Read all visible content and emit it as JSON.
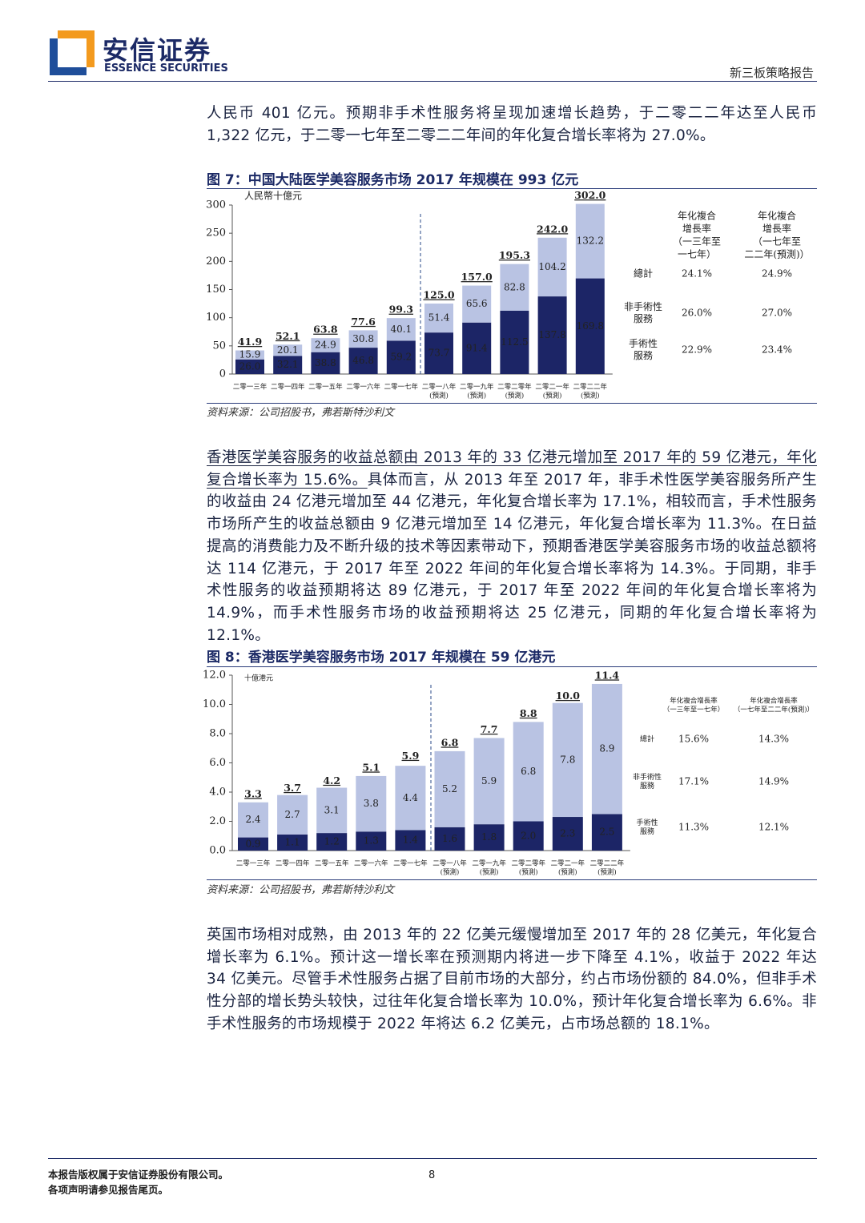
{
  "header": {
    "logo_cn": "安信证券",
    "logo_en": "ESSENCE SECURITIES",
    "report_type": "新三板策略报告"
  },
  "paragraphs": [
    {
      "text": "人民币 401 亿元。预期非手术性服务将呈现加速增长趋势，于二零二二年达至人民币 1,322 亿元，于二零一七年至二零二二年间的年化复合增长率将为 27.0%。"
    },
    {
      "underlined": "香港医学美容服务的收益总额由 2013 年的 33 亿港元增加至 2017 年的 59 亿港元，年化复合增长率为 15.6%。",
      "text": "具体而言，从 2013 年至 2017 年，非手术性医学美容服务所产生的收益由 24 亿港元增加至 44 亿港元，年化复合增长率为 17.1%，相较而言，手术性服务市场所产生的收益总额由 9 亿港元增加至 14 亿港元，年化复合增长率为 11.3%。在日益提高的消费能力及不断升级的技术等因素带动下，预期香港医学美容服务市场的收益总额将达 114 亿港元，于 2017 年至 2022 年间的年化复合增长率将为 14.3%。于同期，非手术性服务的收益预期将达 89 亿港元，于 2017 年至 2022 年间的年化复合增长率将为 14.9%，而手术性服务市场的收益预期将达 25 亿港元，同期的年化复合增长率将为 12.1%。"
    },
    {
      "text": "英国市场相对成熟，由 2013 年的 22 亿美元缓慢增加至 2017 年的 28 亿美元，年化复合增长率为 6.1%。预计这一增长率在预测期内将进一步下降至 4.1%，收益于 2022 年达 34 亿美元。尽管手术性服务占据了目前市场的大部分，约占市场份额的 84.0%，但非手术性分部的增长势头较快，过往年化复合增长率为 10.0%，预计年化复合增长率为 6.6%。非手术性服务的市场规模于 2022 年将达 6.2 亿美元，占市场总额的 18.1%。"
    }
  ],
  "figures": [
    {
      "title": "图 7：中国大陆医学美容服务市场 2017 年规模在 993 亿元",
      "chart": {
        "type": "bar",
        "stacked": true,
        "unit": "人民幣十億元",
        "categories": [
          "二零一三年",
          "二零一四年",
          "二零一五年",
          "二零一六年",
          "二零一七年",
          "二零一八年",
          "二零一九年",
          "二零二零年",
          "二零二一年",
          "二零二二年"
        ],
        "category_notes": [
          null,
          null,
          null,
          null,
          null,
          "(預測)",
          "(預測)",
          "(預測)",
          "(預測)",
          "(預測)"
        ],
        "series": [
          {
            "color": "#1c2566",
            "values": [
              26.0,
              32.1,
              38.8,
              46.8,
              59.2,
              73.7,
              91.4,
              112.5,
              137.8,
              169.8
            ],
            "value_labels": [
              "26.0",
              "32.1",
              "38.8",
              "46.8",
              "59.2",
              "73.7",
              "91.4",
              "112.5",
              "137.8",
              "169.8"
            ]
          },
          {
            "color": "#b9c3e3",
            "values": [
              15.9,
              20.1,
              24.9,
              30.8,
              40.1,
              51.4,
              65.6,
              82.8,
              104.2,
              132.2
            ],
            "value_labels": [
              "15.9",
              "20.1",
              "24.9",
              "30.8",
              "40.1",
              "51.4",
              "65.6",
              "82.8",
              "104.2",
              "132.2"
            ]
          }
        ],
        "totals": [
          41.9,
          52.1,
          63.8,
          77.6,
          99.3,
          125.0,
          157.0,
          195.3,
          242.0,
          302.0
        ],
        "total_labels": [
          "41.9",
          "52.1",
          "63.8",
          "77.6",
          "99.3",
          "125.0",
          "157.0",
          "195.3",
          "242.0",
          "302.0"
        ],
        "ylim": [
          0,
          300
        ],
        "yticks": [
          0,
          50,
          100,
          150,
          200,
          250,
          300
        ]
      },
      "cagr_table": {
        "headers": [
          [
            "年化複合",
            "增長率",
            "（一三年至",
            "一七年）"
          ],
          [
            "年化複合",
            "增長率",
            "（一七年至",
            "二二年(預測)）"
          ]
        ],
        "rows": [
          {
            "label": [
              "總計"
            ],
            "cells": [
              "24.1%",
              "24.9%"
            ]
          },
          {
            "label": [
              "非手術性",
              "服務"
            ],
            "cells": [
              "26.0%",
              "27.0%"
            ]
          },
          {
            "label": [
              "手術性",
              "服務"
            ],
            "cells": [
              "22.9%",
              "23.4%"
            ]
          }
        ]
      },
      "source": "资料来源：公司招股书，弗若斯特沙利文"
    },
    {
      "title": "图 8：香港医学美容服务市场 2017 年规模在 59 亿港元",
      "chart": {
        "type": "bar",
        "stacked": true,
        "unit": "十億港元",
        "categories": [
          "二零一三年",
          "二零一四年",
          "二零一五年",
          "二零一六年",
          "二零一七年",
          "二零一八年",
          "二零一九年",
          "二零二零年",
          "二零二一年",
          "二零二二年"
        ],
        "category_notes": [
          null,
          null,
          null,
          null,
          null,
          "(預測)",
          "(預測)",
          "(預測)",
          "(預測)",
          "(預測)"
        ],
        "series": [
          {
            "color": "#1c2566",
            "values": [
              0.9,
              1.1,
              1.2,
              1.3,
              1.4,
              1.6,
              1.8,
              2.0,
              2.3,
              2.5
            ],
            "value_labels": [
              "0.9",
              "1.1",
              "1.2",
              "1.3",
              "1.4",
              "1.6",
              "1.8",
              "2.0",
              "2.3",
              "2.5"
            ]
          },
          {
            "color": "#b9c3e3",
            "values": [
              2.4,
              2.7,
              3.1,
              3.8,
              4.4,
              5.2,
              5.9,
              6.8,
              7.8,
              8.9
            ],
            "value_labels": [
              "2.4",
              "2.7",
              "3.1",
              "3.8",
              "4.4",
              "5.2",
              "5.9",
              "6.8",
              "7.8",
              "8.9"
            ]
          }
        ],
        "totals": [
          3.3,
          3.7,
          4.2,
          5.1,
          5.9,
          6.8,
          7.7,
          8.8,
          10.0,
          11.4
        ],
        "total_labels": [
          "3.3",
          "3.7",
          "4.2",
          "5.1",
          "5.9",
          "6.8",
          "7.7",
          "8.8",
          "10.0",
          "11.4"
        ],
        "ylim": [
          0,
          12
        ],
        "yticks": [
          {
            "value": 0,
            "label": "0.0"
          },
          {
            "value": 2,
            "label": "2.0"
          },
          {
            "value": 4,
            "label": "4.0"
          },
          {
            "value": 6,
            "label": "6.0"
          },
          {
            "value": 8,
            "label": "8.0"
          },
          {
            "value": 10,
            "label": "10.0"
          },
          {
            "value": 12,
            "label": "12.0"
          }
        ]
      },
      "cagr_table": {
        "headers": [
          [
            "年化複合增長率",
            "（一三年至一七年）"
          ],
          [
            "年化複合增長率",
            "（一七年至二二年(預測)）"
          ]
        ],
        "rows": [
          {
            "label": [
              "總計"
            ],
            "cells": [
              "15.6%",
              "14.3%"
            ]
          },
          {
            "label": [
              "非手術性",
              "服務"
            ],
            "cells": [
              "17.1%",
              "14.9%"
            ]
          },
          {
            "label": [
              "手術性",
              "服務"
            ],
            "cells": [
              "11.3%",
              "12.1%"
            ]
          }
        ]
      },
      "source": "资料来源：公司招股书，弗若斯特沙利文"
    }
  ],
  "footer": {
    "copyright": "本报告版权属于安信证券股份有限公司。",
    "disclaimer": "各项声明请参见报告尾页。",
    "page": "8"
  }
}
